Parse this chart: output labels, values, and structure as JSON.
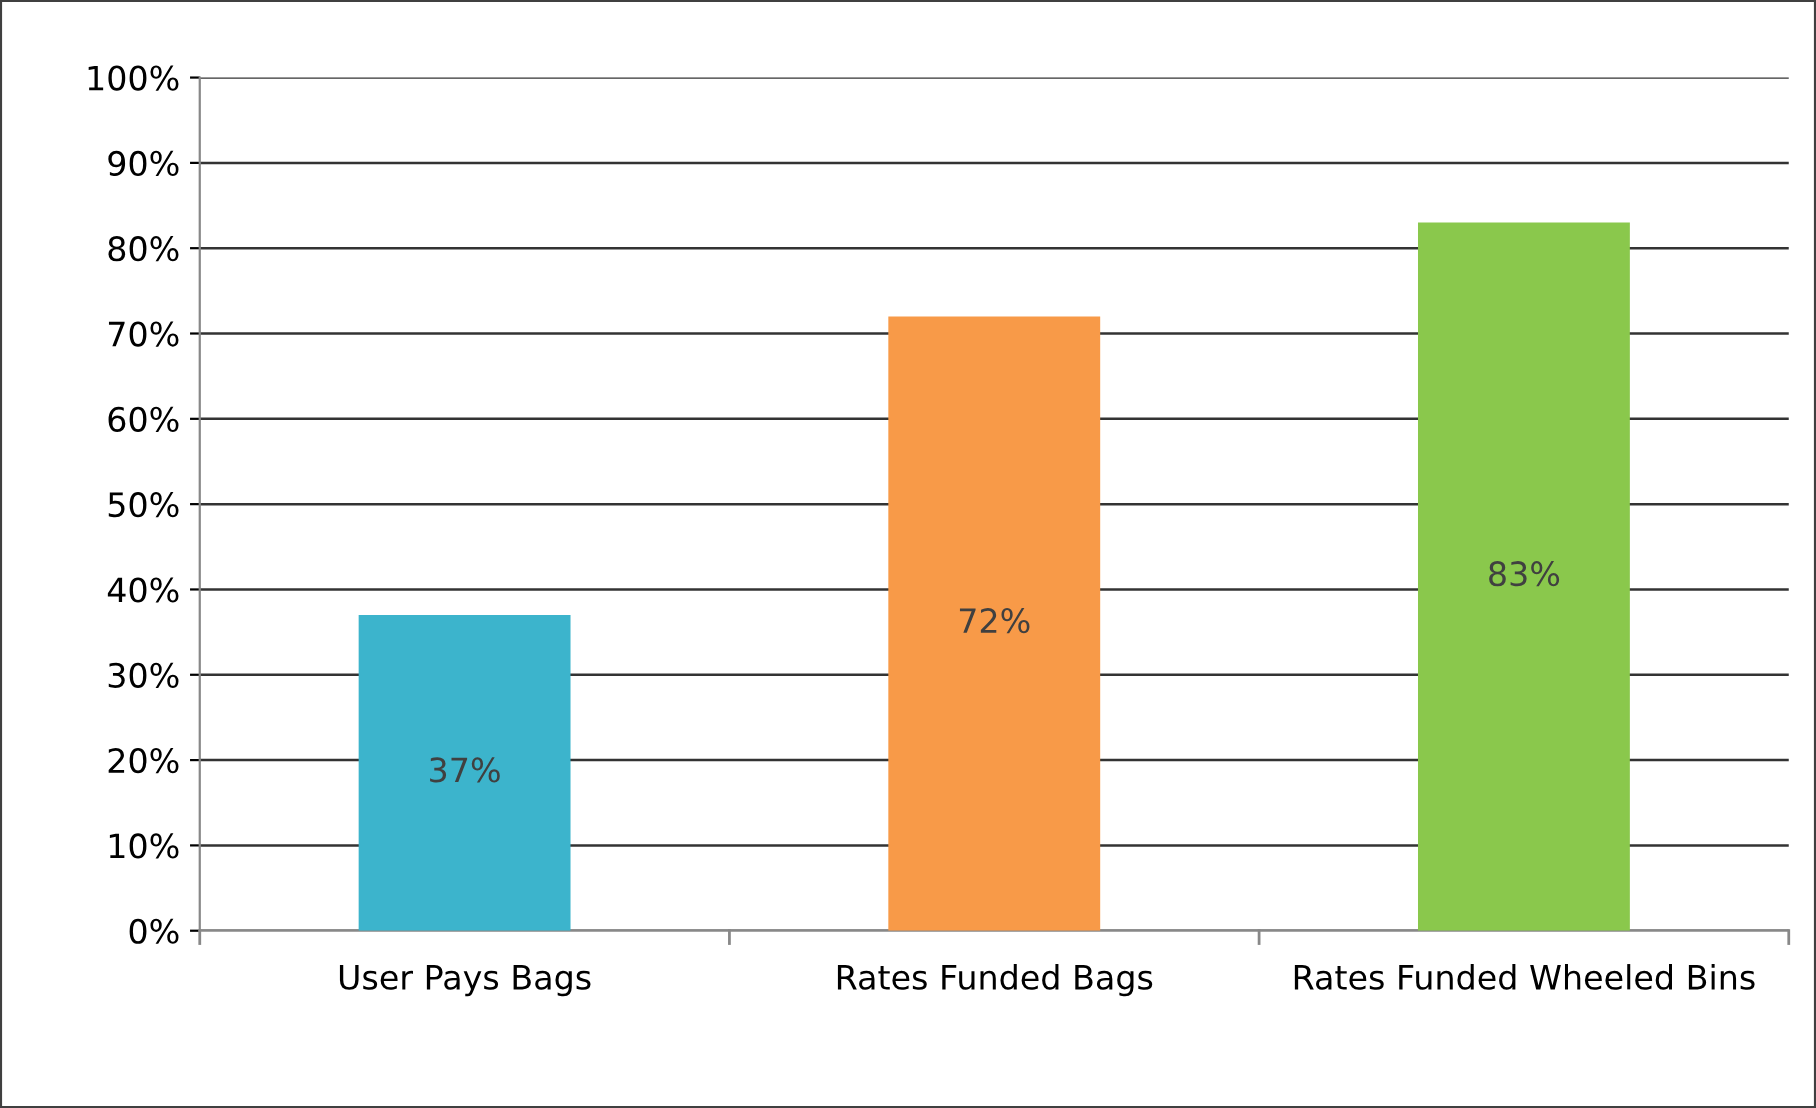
{
  "chart_data": {
    "type": "bar",
    "categories": [
      "User Pays Bags",
      "Rates Funded Bags",
      "Rates Funded Wheeled Bins"
    ],
    "values": [
      37,
      72,
      83
    ],
    "colors": [
      "#3cb4cc",
      "#f89a48",
      "#8ac84c"
    ],
    "value_labels": [
      "37%",
      "72%",
      "83%"
    ],
    "ylim": [
      0,
      100
    ],
    "yticks": [
      {
        "value": 0,
        "label": "0%"
      },
      {
        "value": 10,
        "label": "10%"
      },
      {
        "value": 20,
        "label": "20%"
      },
      {
        "value": 30,
        "label": "30%"
      },
      {
        "value": 40,
        "label": "40%"
      },
      {
        "value": 50,
        "label": "50%"
      },
      {
        "value": 60,
        "label": "60%"
      },
      {
        "value": 70,
        "label": "70%"
      },
      {
        "value": 80,
        "label": "80%"
      },
      {
        "value": 90,
        "label": "90%"
      },
      {
        "value": 100,
        "label": "100%"
      }
    ],
    "grid": "y",
    "legend": false
  }
}
